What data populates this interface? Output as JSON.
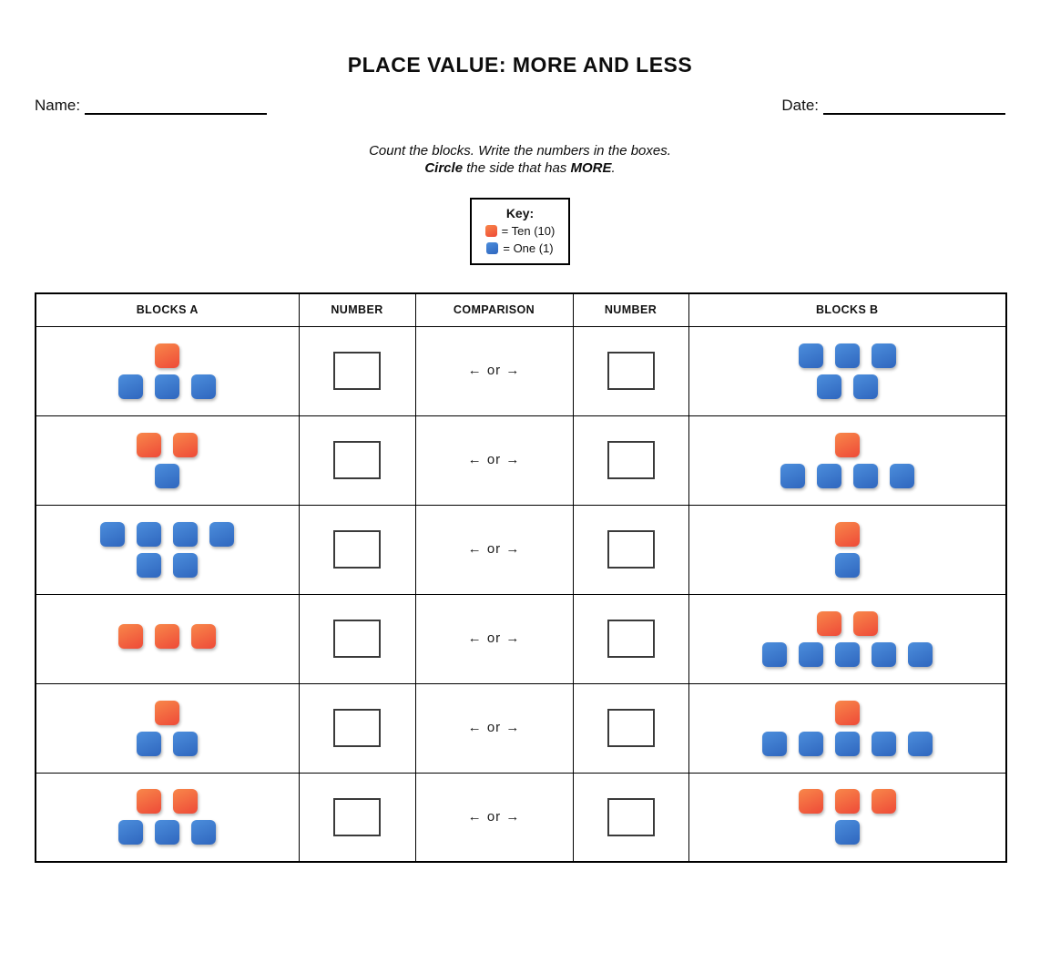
{
  "title": "PLACE VALUE: MORE AND LESS",
  "name_label": "Name:",
  "date_label": "Date:",
  "instructions": {
    "line1": "Count the blocks. Write the numbers in the boxes.",
    "line2_bold1": "Circle",
    "line2_mid": " the side that has ",
    "line2_bold2": "MORE",
    "line2_end": "."
  },
  "key": {
    "title": "Key:",
    "items": [
      {
        "type": "ten",
        "label": "= Ten (10)"
      },
      {
        "type": "one",
        "label": "= One (1)"
      }
    ]
  },
  "colors": {
    "ten_gradient_top": "#f8874a",
    "ten_gradient_bottom": "#ee4a38",
    "one_gradient_top": "#4c8edc",
    "one_gradient_bottom": "#2f66be"
  },
  "table": {
    "headers": [
      "BLOCKS A",
      "NUMBER",
      "COMPARISON",
      "NUMBER",
      "BLOCKS B"
    ],
    "rows": [
      {
        "blocks_a": [
          [
            "ten"
          ],
          [
            "one",
            "one",
            "one"
          ]
        ],
        "number_a": "",
        "comparison": "← or →",
        "number_b": "",
        "blocks_b": [
          [
            "one",
            "one",
            "one"
          ],
          [
            "one",
            "one"
          ]
        ]
      },
      {
        "blocks_a": [
          [
            "ten",
            "ten"
          ],
          [
            "one"
          ]
        ],
        "number_a": "",
        "comparison": "← or →",
        "number_b": "",
        "blocks_b": [
          [
            "ten"
          ],
          [
            "one",
            "one",
            "one",
            "one"
          ]
        ]
      },
      {
        "blocks_a": [
          [
            "one",
            "one",
            "one",
            "one"
          ],
          [
            "one",
            "one"
          ]
        ],
        "number_a": "",
        "comparison": "← or →",
        "number_b": "",
        "blocks_b": [
          [
            "ten"
          ],
          [
            "one"
          ]
        ]
      },
      {
        "blocks_a": [
          [
            "ten",
            "ten",
            "ten"
          ]
        ],
        "number_a": "",
        "comparison": "← or →",
        "number_b": "",
        "blocks_b": [
          [
            "ten",
            "ten"
          ],
          [
            "one",
            "one",
            "one",
            "one",
            "one"
          ]
        ]
      },
      {
        "blocks_a": [
          [
            "ten"
          ],
          [
            "one",
            "one"
          ]
        ],
        "number_a": "",
        "comparison": "← or →",
        "number_b": "",
        "blocks_b": [
          [
            "ten"
          ],
          [
            "one",
            "one",
            "one",
            "one",
            "one"
          ]
        ]
      },
      {
        "blocks_a": [
          [
            "ten",
            "ten"
          ],
          [
            "one",
            "one",
            "one"
          ]
        ],
        "number_a": "",
        "comparison": "← or →",
        "number_b": "",
        "blocks_b": [
          [
            "ten",
            "ten",
            "ten"
          ],
          [
            "one"
          ]
        ]
      }
    ]
  }
}
